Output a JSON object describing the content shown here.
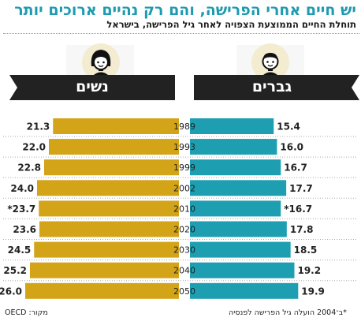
{
  "header": {
    "title": "יש חיים אחרי הפרישה, והם רק נהיים ארוכים יותר",
    "subtitle": "תוחלת החיים הממוצעת הצפויה לאחר גיל הפרישה, בישראל"
  },
  "footer": {
    "note": "*ב־2004 הועלה גיל הפרישה לפנסיה",
    "source": "מקור: OECD"
  },
  "colors": {
    "women": "#d4a418",
    "men": "#1d9fb1",
    "banner": "#222222",
    "badge": "#f3ecd0",
    "title": "#1e9bb0"
  },
  "icons": {
    "women": "woman-face-icon",
    "men": "man-face-icon"
  },
  "chart_data": {
    "type": "bar",
    "orientation": "horizontal-butterfly",
    "categories": [
      "1989",
      "1993",
      "1999",
      "2002",
      "2010",
      "2020",
      "2030",
      "2040",
      "2050"
    ],
    "series": [
      {
        "name": "נשים",
        "values": [
          21.3,
          22.0,
          22.8,
          24.0,
          23.7,
          23.6,
          24.5,
          25.2,
          26.0
        ],
        "labels": [
          "21.3",
          "22.0",
          "22.8",
          "24.0",
          "*23.7",
          "23.6",
          "24.5",
          "25.2",
          "26.0"
        ]
      },
      {
        "name": "גברים",
        "values": [
          15.4,
          16.0,
          16.7,
          17.7,
          16.7,
          17.8,
          18.5,
          19.2,
          19.9
        ],
        "labels": [
          "15.4",
          "16.0",
          "16.7",
          "17.7",
          "*16.7",
          "17.8",
          "18.5",
          "19.2",
          "19.9"
        ]
      }
    ],
    "title": "",
    "xlabel": "",
    "ylabel": ""
  }
}
